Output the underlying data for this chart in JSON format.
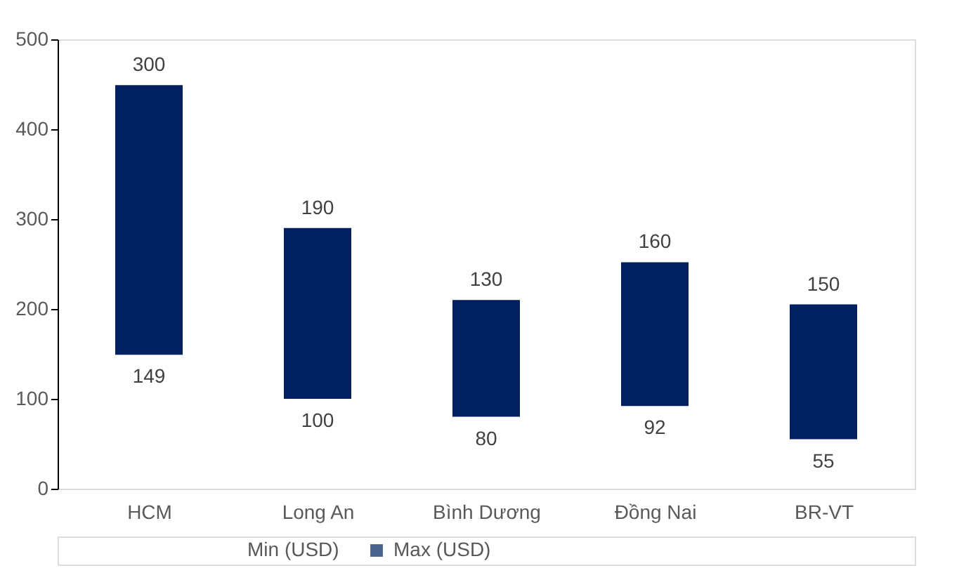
{
  "chart_data": {
    "type": "bar",
    "categories": [
      "HCM",
      "Long An",
      "Bình Dương",
      "Đồng Nai",
      "BR-VT"
    ],
    "series": [
      {
        "name": "Max (USD)",
        "color": "#002060",
        "values": [
          300,
          190,
          130,
          160,
          150
        ],
        "base": [
          149,
          100,
          80,
          92,
          55
        ]
      }
    ],
    "annotations": [
      {
        "text": "149",
        "x": "HCM",
        "y": 149
      },
      {
        "text": "100",
        "x": "Long An",
        "y": 100
      },
      {
        "text": "80",
        "x": "Bình Dương",
        "y": 80
      },
      {
        "text": "92",
        "x": "Đồng Nai",
        "y": 92
      },
      {
        "text": "55",
        "x": "BR-VT",
        "y": 55
      },
      "Min (USD)"
    ],
    "ylim": [
      0,
      500
    ],
    "yticks": [
      0,
      100,
      200,
      300,
      400,
      500
    ],
    "grid": false,
    "legend": "bottom",
    "data_labels": true
  }
}
